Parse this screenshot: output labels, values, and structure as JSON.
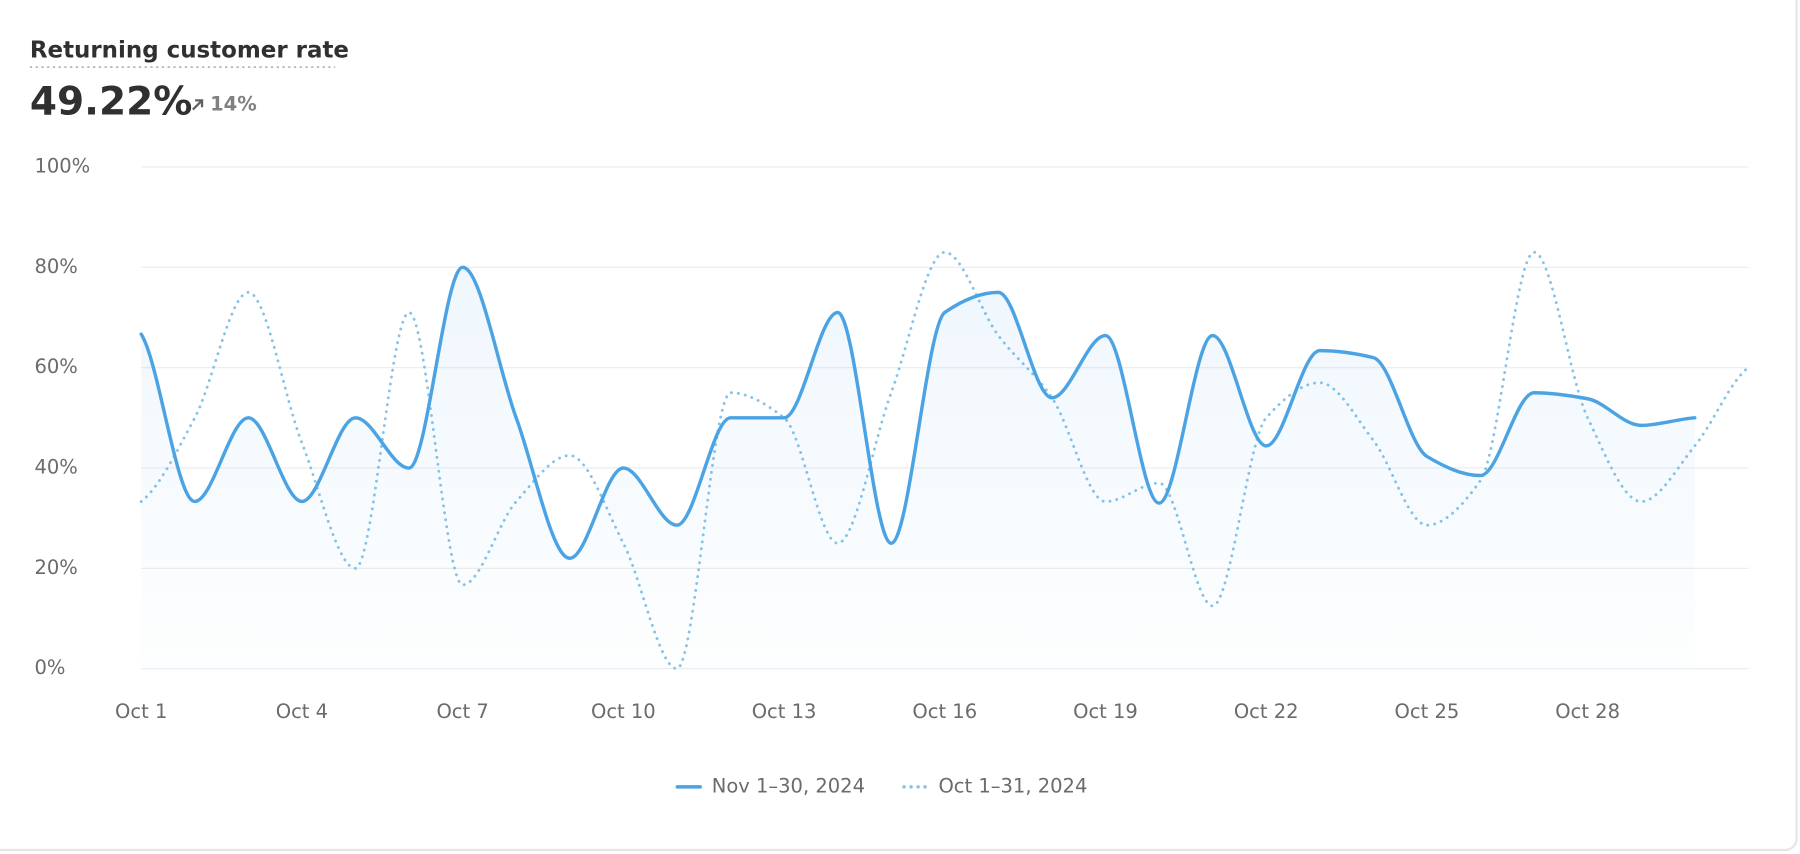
{
  "header": {
    "title": "Returning customer rate",
    "value": "49.22%",
    "change": "14%"
  },
  "chart_data": {
    "type": "line",
    "categories": [
      "Oct 1",
      null,
      null,
      "Oct 4",
      null,
      null,
      "Oct 7",
      null,
      null,
      "Oct 10",
      null,
      null,
      "Oct 13",
      null,
      null,
      "Oct 16",
      null,
      null,
      "Oct 19",
      null,
      null,
      "Oct 22",
      null,
      null,
      "Oct 25",
      null,
      null,
      "Oct 28",
      null,
      null,
      null
    ],
    "series": [
      {
        "name": "Nov 1–30, 2024",
        "color": "#4ba3e3",
        "style": "solid",
        "values": [
          66.67,
          33.33,
          50,
          33.33,
          50,
          40,
          80,
          50,
          22,
          40,
          28.6,
          50,
          50,
          71,
          25,
          71,
          75,
          54,
          66.4,
          33,
          66.4,
          44.4,
          63.4,
          62,
          42.3,
          38.5,
          55,
          53.8,
          48.5,
          50,
          null
        ]
      },
      {
        "name": "Oct 1–31, 2024",
        "color": "#86c3e8",
        "style": "dotted",
        "values": [
          33.3,
          50,
          75,
          45,
          20,
          71,
          16.7,
          33.3,
          42.5,
          25,
          0,
          55,
          50,
          25,
          55,
          83,
          66.4,
          54,
          33.3,
          37,
          12.5,
          50,
          57,
          45.5,
          28.6,
          37.5,
          83,
          50,
          33.3,
          44.4,
          60
        ]
      }
    ],
    "ylim": [
      0,
      100
    ],
    "yticks": [
      {
        "value": 0,
        "label": "0%"
      },
      {
        "value": 20,
        "label": "20%"
      },
      {
        "value": 40,
        "label": "40%"
      },
      {
        "value": 60,
        "label": "60%"
      },
      {
        "value": 80,
        "label": "80%"
      },
      {
        "value": 100,
        "label": "100%"
      }
    ],
    "grid": true
  }
}
